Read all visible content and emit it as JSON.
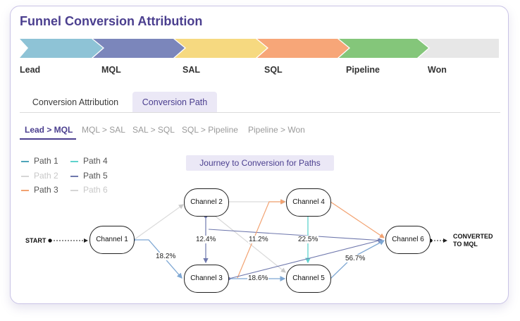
{
  "header": {
    "title": "Funnel Conversion Attribution"
  },
  "funnel": {
    "stages": [
      {
        "label": "Lead",
        "color": "#8ec3d6"
      },
      {
        "label": "MQL",
        "color": "#7b86bb"
      },
      {
        "label": "SAL",
        "color": "#f6d980"
      },
      {
        "label": "SQL",
        "color": "#f7a678"
      },
      {
        "label": "Pipeline",
        "color": "#84c67a"
      },
      {
        "label": "Won",
        "color": "#e7e7e7"
      }
    ]
  },
  "tabs": [
    {
      "label": "Conversion Attribution",
      "active": false
    },
    {
      "label": "Conversion Path",
      "active": true
    }
  ],
  "subtabs": [
    {
      "label": "Lead > MQL",
      "active": true
    },
    {
      "label": "MQL > SAL",
      "active": false
    },
    {
      "label": "SAL > SQL",
      "active": false
    },
    {
      "label": "SQL > Pipeline",
      "active": false
    },
    {
      "label": "Pipeline > Won",
      "active": false
    }
  ],
  "legend": [
    {
      "label": "Path 1",
      "color": "#4fa5b9",
      "active": true
    },
    {
      "label": "Path 2",
      "color": "#d6d6d6",
      "active": false
    },
    {
      "label": "Path 3",
      "color": "#f2a271",
      "active": true
    },
    {
      "label": "Path 4",
      "color": "#5fd3cd",
      "active": true
    },
    {
      "label": "Path 5",
      "color": "#6f78ad",
      "active": true
    },
    {
      "label": "Path 6",
      "color": "#d6d6d6",
      "active": false
    }
  ],
  "diagram": {
    "title": "Journey to Conversion for Paths",
    "start_label": "START",
    "end_label_line1": "CONVERTED",
    "end_label_line2": "TO MQL",
    "nodes": {
      "ch1": "Channel 1",
      "ch2": "Channel 2",
      "ch3": "Channel 3",
      "ch4": "Channel 4",
      "ch5": "Channel 5",
      "ch6": "Channel 6"
    },
    "percents": {
      "ch1_ch3": "18.2%",
      "ch2_ch3": "12.4%",
      "ch3_ch4": "11.2%",
      "ch4_ch5": "22.5%",
      "ch3_ch5": "18.6%",
      "ch5_ch6": "56.7%"
    }
  }
}
